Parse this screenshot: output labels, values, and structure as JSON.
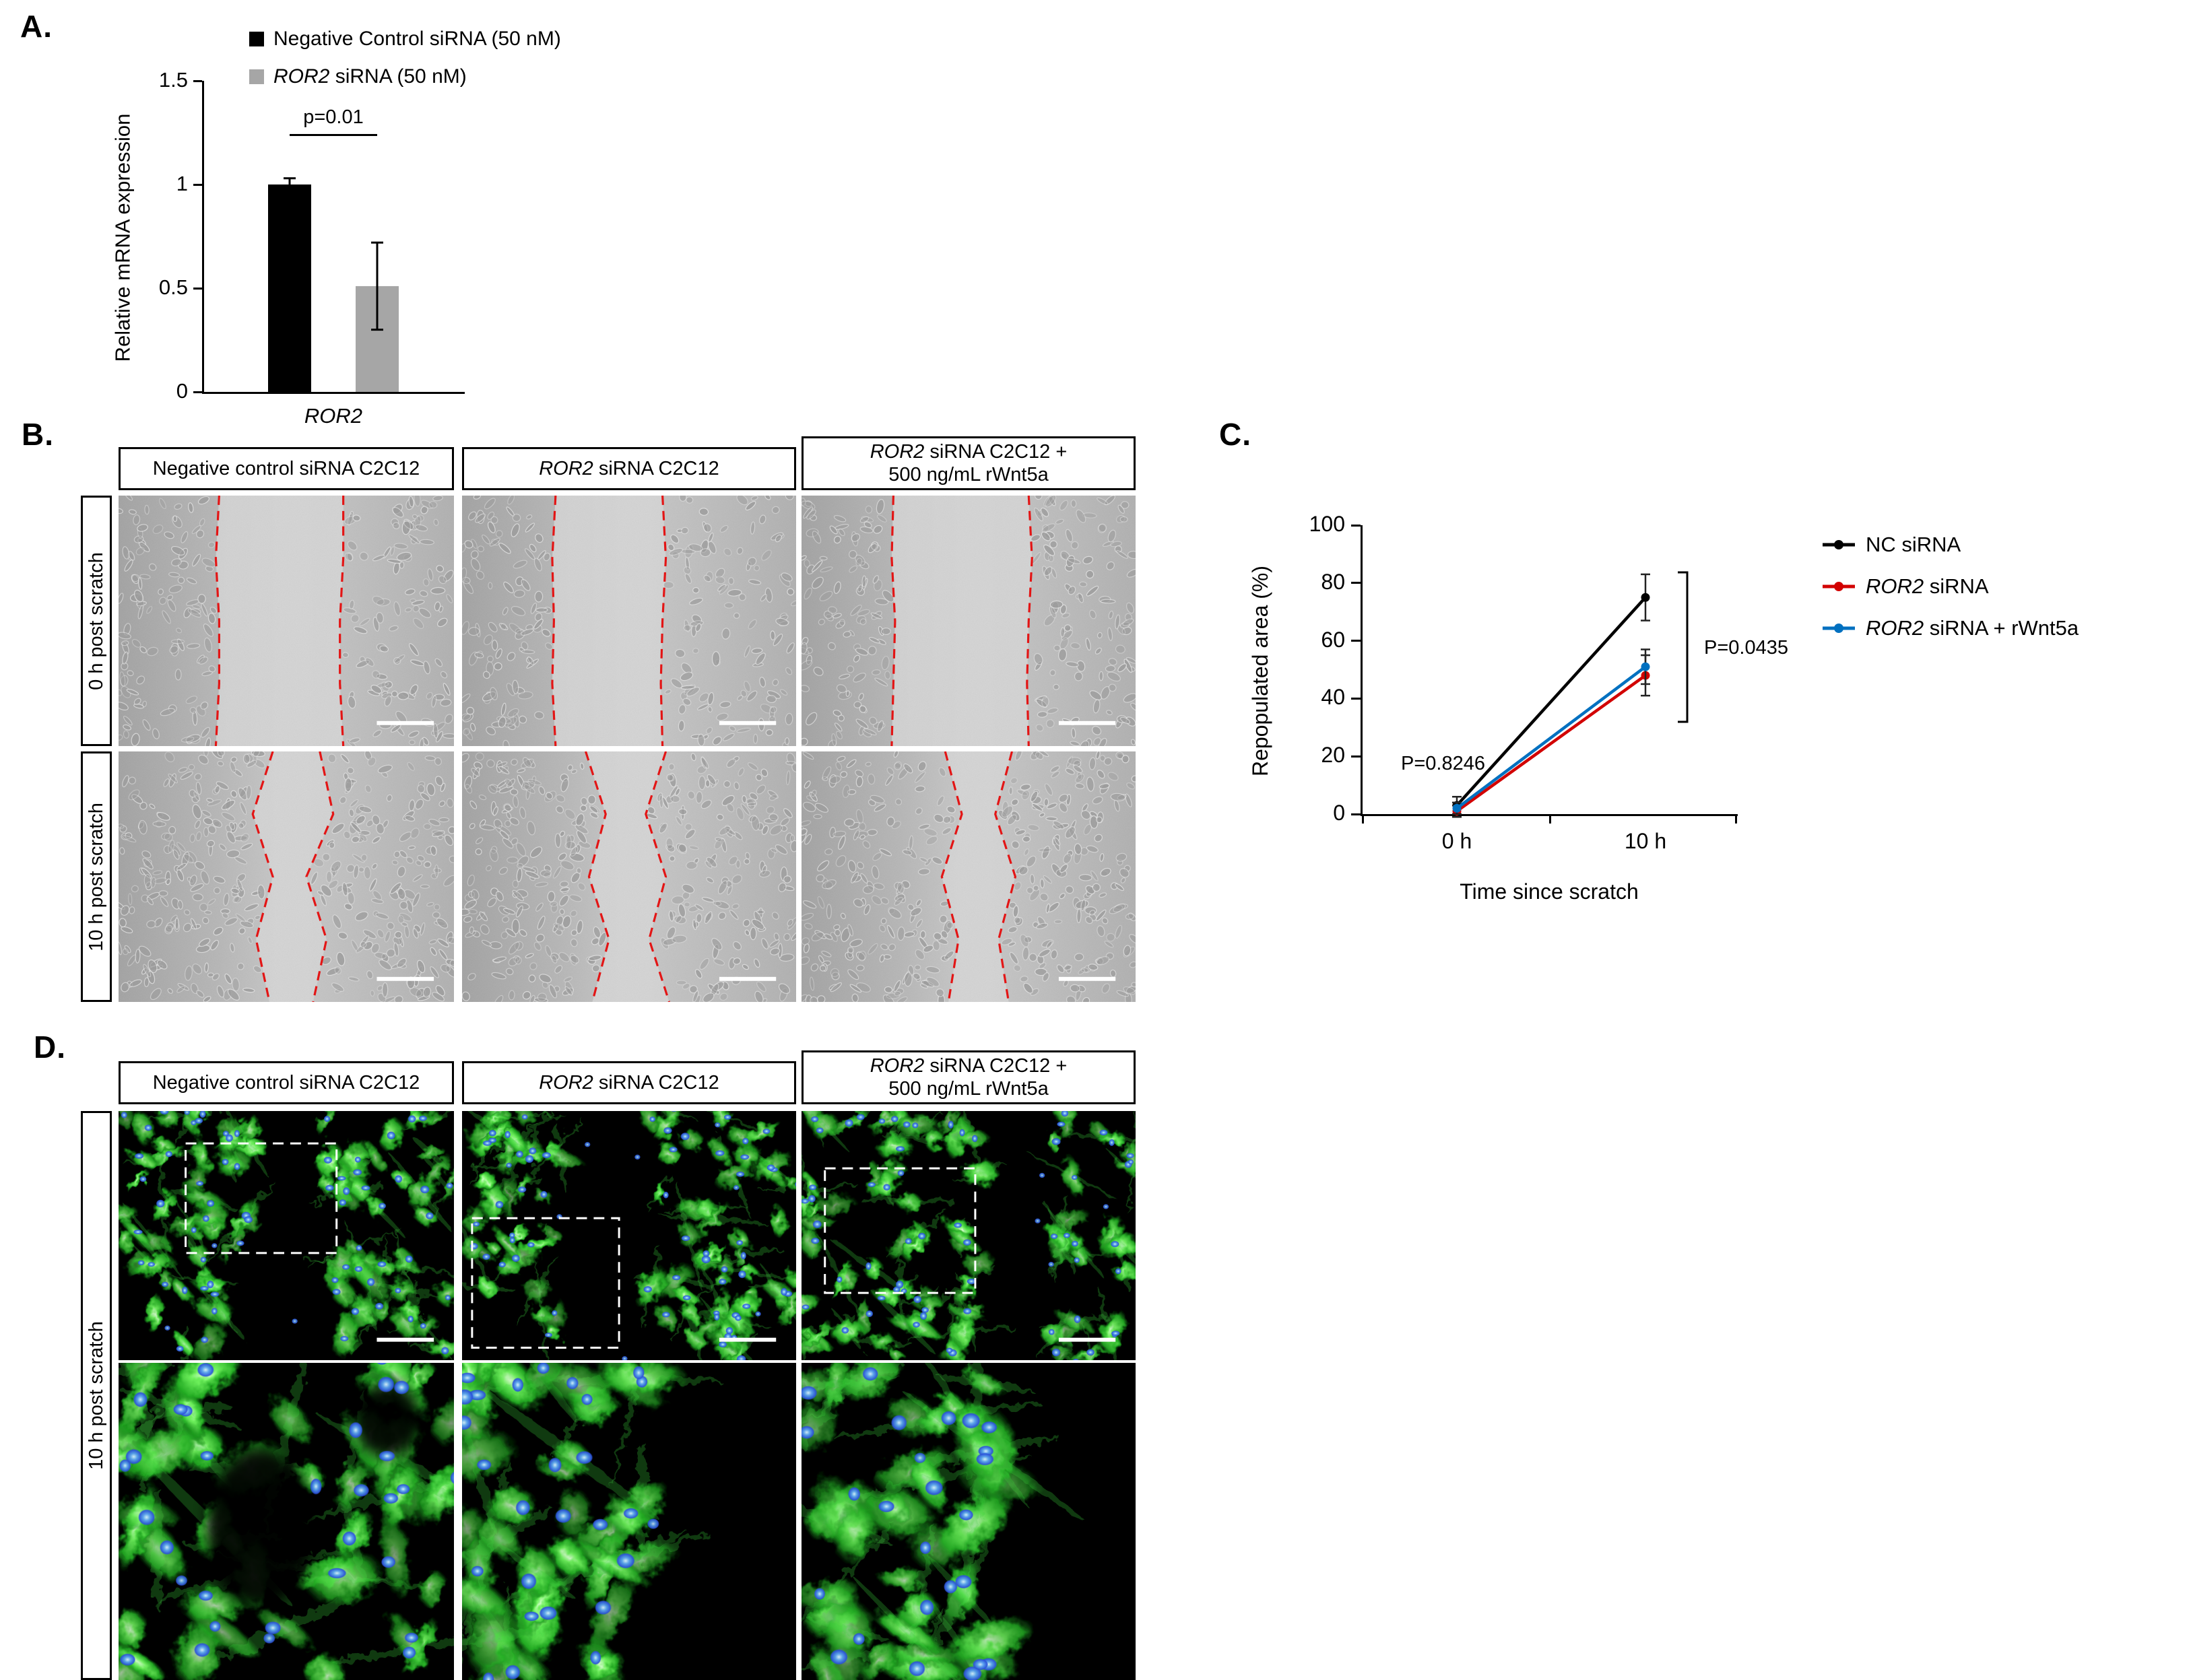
{
  "panels": {
    "a": "A.",
    "b": "B.",
    "c": "C.",
    "d": "D."
  },
  "panelA": {
    "legend": {
      "item1": "Negative Control siRNA (50 nM)",
      "item2_gene": "ROR2",
      "item2_rest": " siRNA (50 nM)"
    }
  },
  "columns": {
    "col1": "Negative control siRNA C2C12",
    "col2_gene": "ROR2",
    "col2_rest": " siRNA C2C12",
    "col3_line1_gene": "ROR2",
    "col3_line1_rest": " siRNA C2C12 +",
    "col3_line2": "500 ng/mL rWnt5a"
  },
  "rows": {
    "r0": "0 h post scratch",
    "r10": "10 h post scratch"
  },
  "panelC": {
    "legend": [
      {
        "gene": "",
        "rest": "NC siRNA"
      },
      {
        "gene": "ROR2",
        "rest": " siRNA"
      },
      {
        "gene": "ROR2",
        "rest": " siRNA + rWnt5a"
      }
    ]
  },
  "chart_data": [
    {
      "id": "panel-a-bar",
      "type": "bar",
      "categories": [
        "ROR2"
      ],
      "series": [
        {
          "name": "Negative Control siRNA (50 nM)",
          "color": "#000000",
          "values": [
            1.0
          ],
          "error": [
            0.03
          ]
        },
        {
          "name": "ROR2 siRNA (50 nM)",
          "color": "#a6a6a6",
          "values": [
            0.51
          ],
          "error": [
            0.21
          ]
        }
      ],
      "ylabel": "Relative mRNA expression",
      "xlabel": "",
      "ylim": [
        0,
        1.5
      ],
      "yticks": [
        0,
        0.5,
        1,
        1.5
      ],
      "grid": false,
      "annotations": [
        {
          "text": "p=0.01",
          "between": [
            0,
            1
          ]
        }
      ]
    },
    {
      "id": "panel-c-line",
      "type": "line",
      "categories": [
        "0 h",
        "10 h"
      ],
      "xlabel": "Time since scratch",
      "ylabel": "Repopulated area (%)",
      "ylim": [
        0,
        100
      ],
      "yticks": [
        0,
        20,
        40,
        60,
        80,
        100
      ],
      "grid": false,
      "legend_position": "right",
      "series": [
        {
          "name": "NC siRNA",
          "color": "#000000",
          "values": [
            3,
            75
          ],
          "error": [
            3,
            8
          ]
        },
        {
          "name": "ROR2 siRNA",
          "color": "#d20000",
          "values": [
            1,
            48
          ],
          "error": [
            2,
            7
          ]
        },
        {
          "name": "ROR2 siRNA + rWnt5a",
          "color": "#0070c0",
          "values": [
            2,
            51
          ],
          "error": [
            2,
            6
          ]
        }
      ],
      "annotations": [
        {
          "text": "P=0.8246",
          "x": "0 h"
        },
        {
          "text": "P=0.0435",
          "x": "10 h"
        }
      ]
    }
  ]
}
